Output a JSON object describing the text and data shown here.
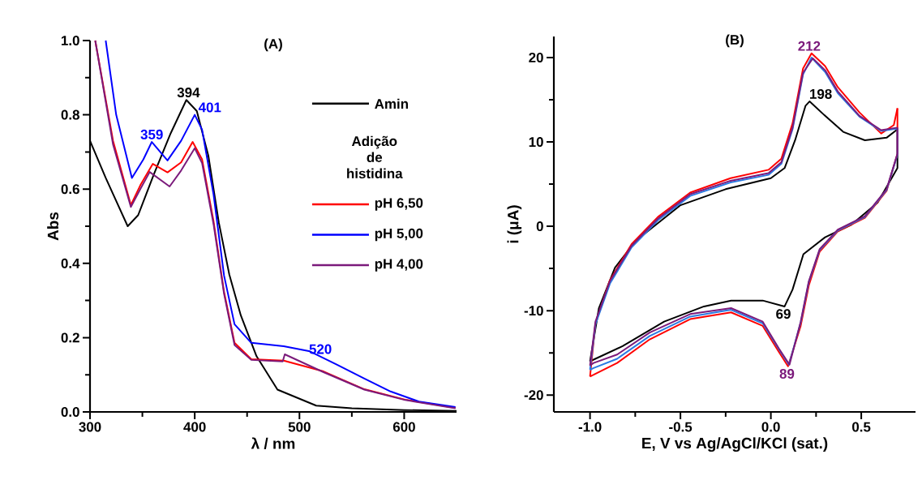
{
  "chart_data": [
    {
      "type": "line",
      "title": "(A)",
      "xlabel": "λ / nm",
      "ylabel": "Abs",
      "legend_title": "Adição de histidina",
      "legend": "top right",
      "xlim": [
        300,
        650
      ],
      "ylim": [
        0,
        1
      ],
      "xticks": [
        300,
        400,
        500,
        600
      ],
      "yticks": [
        {
          "value": 0,
          "label": "0.0"
        },
        {
          "value": 0.2,
          "label": "0.2"
        },
        {
          "value": 0.4,
          "label": "0.4"
        },
        {
          "value": 0.6,
          "label": "0.6"
        },
        {
          "value": 0.8,
          "label": "0.8"
        },
        {
          "value": 1,
          "label": "1.0"
        }
      ],
      "series": [
        {
          "name": "Amin",
          "color": "#000000",
          "x": [
            300,
            315,
            336,
            346,
            361,
            377,
            392,
            402,
            413,
            423,
            433,
            444,
            459,
            479,
            516,
            550,
            600,
            650
          ],
          "values": [
            0.73,
            0.63,
            0.5,
            0.53,
            0.64,
            0.75,
            0.84,
            0.81,
            0.69,
            0.51,
            0.37,
            0.26,
            0.15,
            0.06,
            0.017,
            0.01,
            0.005,
            0.003
          ]
        },
        {
          "name": "pH 6,50",
          "color": "#ff0000",
          "x": [
            305,
            322,
            339,
            348,
            360,
            374,
            387,
            398,
            407,
            418,
            428,
            438,
            454,
            485,
            523,
            562,
            601,
            649
          ],
          "values": [
            1.0,
            0.73,
            0.557,
            0.61,
            0.668,
            0.645,
            0.672,
            0.727,
            0.68,
            0.513,
            0.323,
            0.186,
            0.142,
            0.138,
            0.109,
            0.061,
            0.033,
            0.011
          ]
        },
        {
          "name": "pH 5,00",
          "color": "#0000ff",
          "x": [
            315,
            325,
            340,
            351,
            359,
            374,
            387,
            400,
            407,
            418,
            428,
            438,
            454,
            485,
            510,
            536,
            562,
            587,
            614,
            649
          ],
          "values": [
            1.0,
            0.8,
            0.63,
            0.68,
            0.727,
            0.677,
            0.73,
            0.8,
            0.76,
            0.585,
            0.367,
            0.236,
            0.186,
            0.177,
            0.163,
            0.127,
            0.09,
            0.055,
            0.028,
            0.013
          ]
        },
        {
          "name": "pH 4,00",
          "color": "#7b1a7b",
          "x": [
            305,
            322,
            339,
            348,
            357,
            376,
            387,
            400,
            407,
            418,
            428,
            438,
            454,
            484,
            486,
            523,
            562,
            601,
            649
          ],
          "values": [
            1.0,
            0.72,
            0.552,
            0.6,
            0.646,
            0.607,
            0.65,
            0.71,
            0.67,
            0.505,
            0.318,
            0.18,
            0.14,
            0.136,
            0.155,
            0.107,
            0.06,
            0.032,
            0.01
          ]
        }
      ],
      "annotations": [
        {
          "text": "394",
          "x": 394,
          "y": 0.84
        },
        {
          "text": "359",
          "x": 359,
          "y": 0.727
        },
        {
          "text": "401",
          "x": 401,
          "y": 0.8
        },
        {
          "text": "520",
          "x": 520,
          "y": 0.149
        }
      ]
    },
    {
      "type": "line",
      "title": "(B)",
      "xlabel": "E, V vs Ag/AgCl/KCl (sat.)",
      "ylabel": "i (μA)",
      "xlim": [
        -1.2,
        0.8
      ],
      "ylim": [
        -22,
        22.5
      ],
      "xticks": [
        {
          "value": -1,
          "label": "-1.0"
        },
        {
          "value": -0.5,
          "label": "-0.5"
        },
        {
          "value": 0,
          "label": "0.0"
        },
        {
          "value": 0.5,
          "label": "0.5"
        }
      ],
      "yticks": [
        -20,
        -10,
        0,
        10,
        20
      ],
      "series": [
        {
          "color": "#000000",
          "x": [
            -1.0,
            -0.951,
            -0.862,
            -0.746,
            -0.5,
            -0.25,
            0.0,
            0.076,
            0.134,
            0.192,
            0.214,
            0.3,
            0.4,
            0.52,
            0.64,
            0.7
          ],
          "values": [
            -16.0,
            -9.7,
            -4.9,
            -1.7,
            2.5,
            4.4,
            5.7,
            6.9,
            10.2,
            14.3,
            14.8,
            13.1,
            11.2,
            10.2,
            10.5,
            11.5
          ]
        },
        {
          "color": "#000000",
          "x": [
            0.7,
            0.7,
            0.59,
            0.446,
            0.3,
            0.18,
            0.12,
            0.076,
            -0.045,
            -0.22,
            -0.37,
            -0.59,
            -0.82,
            -0.98,
            -1.0
          ],
          "values": [
            11.5,
            6.9,
            2.8,
            0.2,
            -1.3,
            -3.3,
            -7.5,
            -9.5,
            -8.8,
            -8.8,
            -9.5,
            -11.3,
            -14.2,
            -15.8,
            -16.0
          ]
        },
        {
          "color": "#ff0000",
          "x": [
            -1.0,
            -0.97,
            -0.89,
            -0.77,
            -0.625,
            -0.446,
            -0.223,
            -0.013,
            0.058,
            0.12,
            0.178,
            0.225,
            0.3,
            0.37,
            0.49,
            0.61,
            0.68,
            0.7
          ],
          "values": [
            -17.8,
            -11.5,
            -6.4,
            -2.1,
            1.1,
            4.0,
            5.7,
            6.7,
            8.0,
            12.2,
            18.7,
            20.5,
            19.0,
            16.5,
            13.5,
            11.0,
            12.0,
            14.0
          ]
        },
        {
          "color": "#ff0000",
          "x": [
            0.7,
            0.7,
            0.64,
            0.52,
            0.37,
            0.27,
            0.21,
            0.165,
            0.095,
            0.045,
            -0.045,
            -0.22,
            -0.446,
            -0.67,
            -0.85,
            -0.98,
            -1.0
          ],
          "values": [
            14.0,
            8.6,
            4.2,
            1.0,
            -0.6,
            -3.0,
            -7.0,
            -11.8,
            -16.6,
            -14.9,
            -11.8,
            -10.2,
            -11.0,
            -13.4,
            -16.2,
            -17.6,
            -17.8
          ]
        },
        {
          "color": "#2a7ae2",
          "x": [
            -1.0,
            -0.97,
            -0.89,
            -0.77,
            -0.625,
            -0.446,
            -0.223,
            -0.013,
            0.058,
            0.12,
            0.178,
            0.225,
            0.3,
            0.37,
            0.49,
            0.61,
            0.7
          ],
          "values": [
            -17.0,
            -11.6,
            -6.8,
            -2.5,
            0.7,
            3.6,
            5.2,
            6.1,
            7.4,
            11.5,
            18.0,
            20.0,
            18.3,
            15.8,
            13.0,
            11.3,
            11.6
          ]
        },
        {
          "color": "#2a7ae2",
          "x": [
            0.7,
            0.7,
            0.64,
            0.52,
            0.37,
            0.27,
            0.21,
            0.165,
            0.1,
            0.045,
            -0.045,
            -0.22,
            -0.446,
            -0.67,
            -0.85,
            -0.98,
            -1.0
          ],
          "values": [
            11.6,
            8.5,
            4.3,
            1.1,
            -0.5,
            -2.8,
            -6.6,
            -11.4,
            -16.4,
            -14.6,
            -11.5,
            -9.9,
            -10.7,
            -13.0,
            -15.7,
            -16.8,
            -17.0
          ]
        },
        {
          "color": "#7b1a7b",
          "x": [
            -1.0,
            -0.97,
            -0.89,
            -0.77,
            -0.625,
            -0.446,
            -0.223,
            -0.013,
            0.058,
            0.12,
            0.178,
            0.232,
            0.3,
            0.37,
            0.49,
            0.61,
            0.7
          ],
          "values": [
            -16.5,
            -11.3,
            -6.5,
            -2.3,
            0.9,
            3.8,
            5.4,
            6.3,
            7.6,
            11.7,
            18.2,
            19.9,
            18.5,
            16.0,
            13.1,
            11.4,
            11.7
          ]
        },
        {
          "color": "#7b1a7b",
          "x": [
            0.7,
            0.7,
            0.64,
            0.52,
            0.37,
            0.27,
            0.21,
            0.165,
            0.103,
            0.045,
            -0.045,
            -0.22,
            -0.446,
            -0.67,
            -0.85,
            -0.98,
            -1.0
          ],
          "values": [
            11.7,
            8.6,
            4.4,
            1.2,
            -0.4,
            -2.7,
            -6.5,
            -11.3,
            -16.4,
            -14.5,
            -11.3,
            -9.7,
            -10.4,
            -12.6,
            -15.2,
            -16.2,
            -16.5
          ]
        }
      ],
      "annotations": [
        {
          "text": "212",
          "x": 0.212,
          "y": 20.5
        },
        {
          "text": "198",
          "x": 0.198,
          "y": 14.8
        },
        {
          "text": "69",
          "x": 0.069,
          "y": -9.5
        },
        {
          "text": "89",
          "x": 0.089,
          "y": -16.6
        }
      ]
    }
  ]
}
